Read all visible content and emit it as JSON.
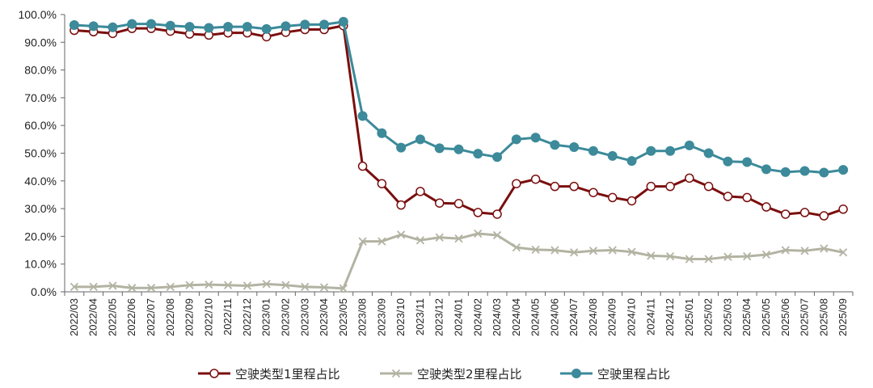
{
  "chart_data": {
    "type": "line",
    "title": "",
    "xlabel": "",
    "ylabel": "",
    "ylim": [
      0,
      100
    ],
    "ytick_step": 10,
    "yticks_format": "percent_1dp",
    "grid": false,
    "legend_position": "bottom",
    "x": [
      "2022/03",
      "2022/04",
      "2022/05",
      "2022/06",
      "2022/07",
      "2022/08",
      "2022/09",
      "2022/10",
      "2022/11",
      "2022/12",
      "2023/01",
      "2023/02",
      "2023/03",
      "2023/04",
      "2023/05",
      "2023/08",
      "2023/09",
      "2023/10",
      "2023/11",
      "2023/12",
      "2024/01",
      "2024/02",
      "2024/03",
      "2024/04",
      "2024/05",
      "2024/06",
      "2024/07",
      "2024/08",
      "2024/09",
      "2024/10",
      "2024/11",
      "2024/12",
      "2025/01",
      "2025/02",
      "2025/03",
      "2025/04",
      "2025/05",
      "2025/06",
      "2025/07",
      "2025/08",
      "2025/09"
    ],
    "series": [
      {
        "name": "空驶类型1里程占比",
        "color": "#7a0e0e",
        "marker": "open-circle",
        "values": [
          94.3,
          93.8,
          93.2,
          95.0,
          95.0,
          94.0,
          93.0,
          92.6,
          93.4,
          93.4,
          92.0,
          93.6,
          94.6,
          94.6,
          96.0,
          45.3,
          39.0,
          31.3,
          36.2,
          32.0,
          31.8,
          28.6,
          28.0,
          39.0,
          40.6,
          38.0,
          38.0,
          35.8,
          34.0,
          32.8,
          38.0,
          38.0,
          41.0,
          38.0,
          34.4,
          34.0,
          30.6,
          28.0,
          28.6,
          27.4,
          29.8
        ]
      },
      {
        "name": "空驶类型2里程占比",
        "color": "#b3b3a3",
        "marker": "x",
        "values": [
          1.8,
          1.8,
          2.2,
          1.4,
          1.4,
          1.8,
          2.4,
          2.6,
          2.4,
          2.2,
          2.8,
          2.4,
          1.8,
          1.6,
          1.2,
          18.2,
          18.2,
          20.6,
          18.6,
          19.6,
          19.2,
          21.0,
          20.4,
          16.0,
          15.2,
          15.0,
          14.2,
          14.8,
          15.0,
          14.4,
          13.0,
          12.8,
          11.8,
          11.8,
          12.6,
          12.8,
          13.4,
          15.0,
          14.8,
          15.6,
          14.2
        ]
      },
      {
        "name": "空驶里程占比",
        "color": "#3c8a9a",
        "marker": "filled-circle",
        "values": [
          96.2,
          95.8,
          95.4,
          96.6,
          96.6,
          96.0,
          95.6,
          95.2,
          95.6,
          95.6,
          94.8,
          95.8,
          96.4,
          96.4,
          97.4,
          63.4,
          57.2,
          52.0,
          55.0,
          51.8,
          51.4,
          49.8,
          48.6,
          55.0,
          55.6,
          53.0,
          52.2,
          50.8,
          49.0,
          47.2,
          50.8,
          50.8,
          52.8,
          50.0,
          47.0,
          46.8,
          44.2,
          43.2,
          43.6,
          43.0,
          44.0
        ]
      }
    ]
  }
}
